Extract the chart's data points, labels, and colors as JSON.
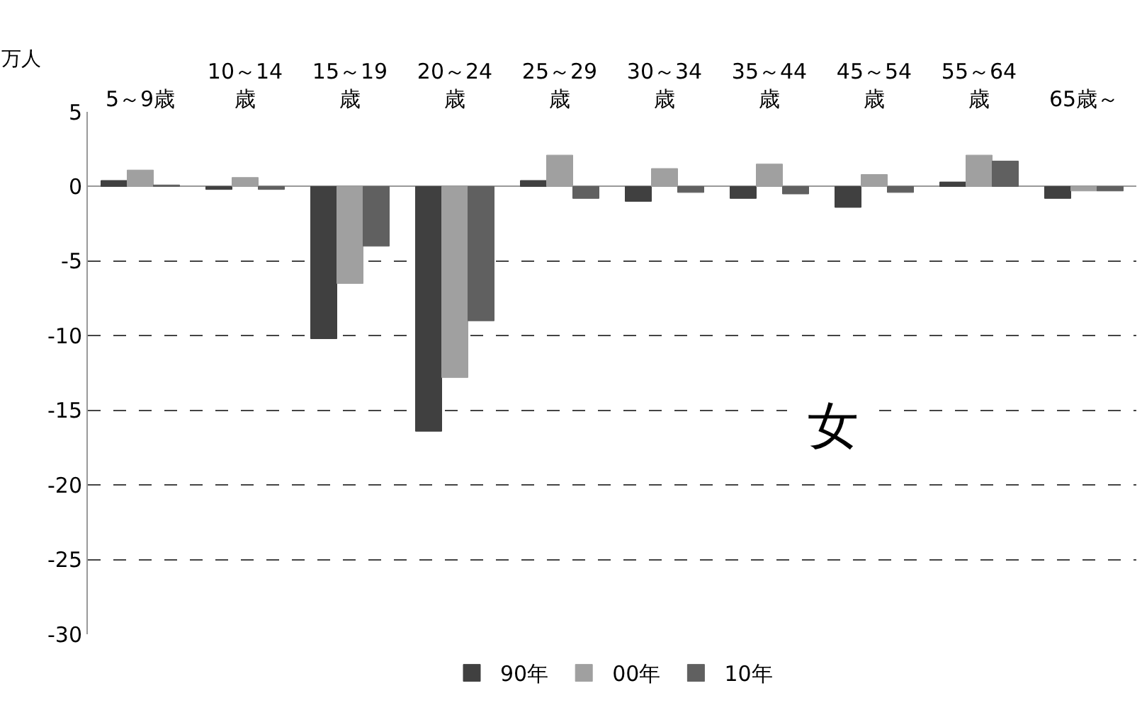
{
  "chart_data": {
    "type": "bar",
    "ylabel": "万人",
    "categories": [
      "5～9歳",
      "10～14\n歳",
      "15～19\n歳",
      "20～24\n歳",
      "25～29\n歳",
      "30～34\n歳",
      "35～44\n歳",
      "45～54\n歳",
      "55～64\n歳",
      "65歳～"
    ],
    "series": [
      {
        "name": "90年",
        "color": "#404040",
        "values": [
          0.4,
          -0.2,
          -10.2,
          -16.4,
          0.4,
          -1.0,
          -0.8,
          -1.4,
          0.3,
          -0.8
        ]
      },
      {
        "name": "00年",
        "color": "#a0a0a0",
        "values": [
          1.1,
          0.6,
          -6.5,
          -12.8,
          2.1,
          1.2,
          1.5,
          0.8,
          2.1,
          -0.3
        ]
      },
      {
        "name": "10年",
        "color": "#606060",
        "values": [
          0.1,
          -0.2,
          -4.0,
          -9.0,
          -0.8,
          -0.4,
          -0.5,
          -0.4,
          1.7,
          -0.3
        ]
      }
    ],
    "ylim": [
      -30,
      5
    ],
    "yticks": [
      5,
      0,
      -5,
      -10,
      -15,
      -20,
      -25,
      -30
    ],
    "grid": "y",
    "legend": "bottom",
    "annotations": [
      "女"
    ]
  }
}
